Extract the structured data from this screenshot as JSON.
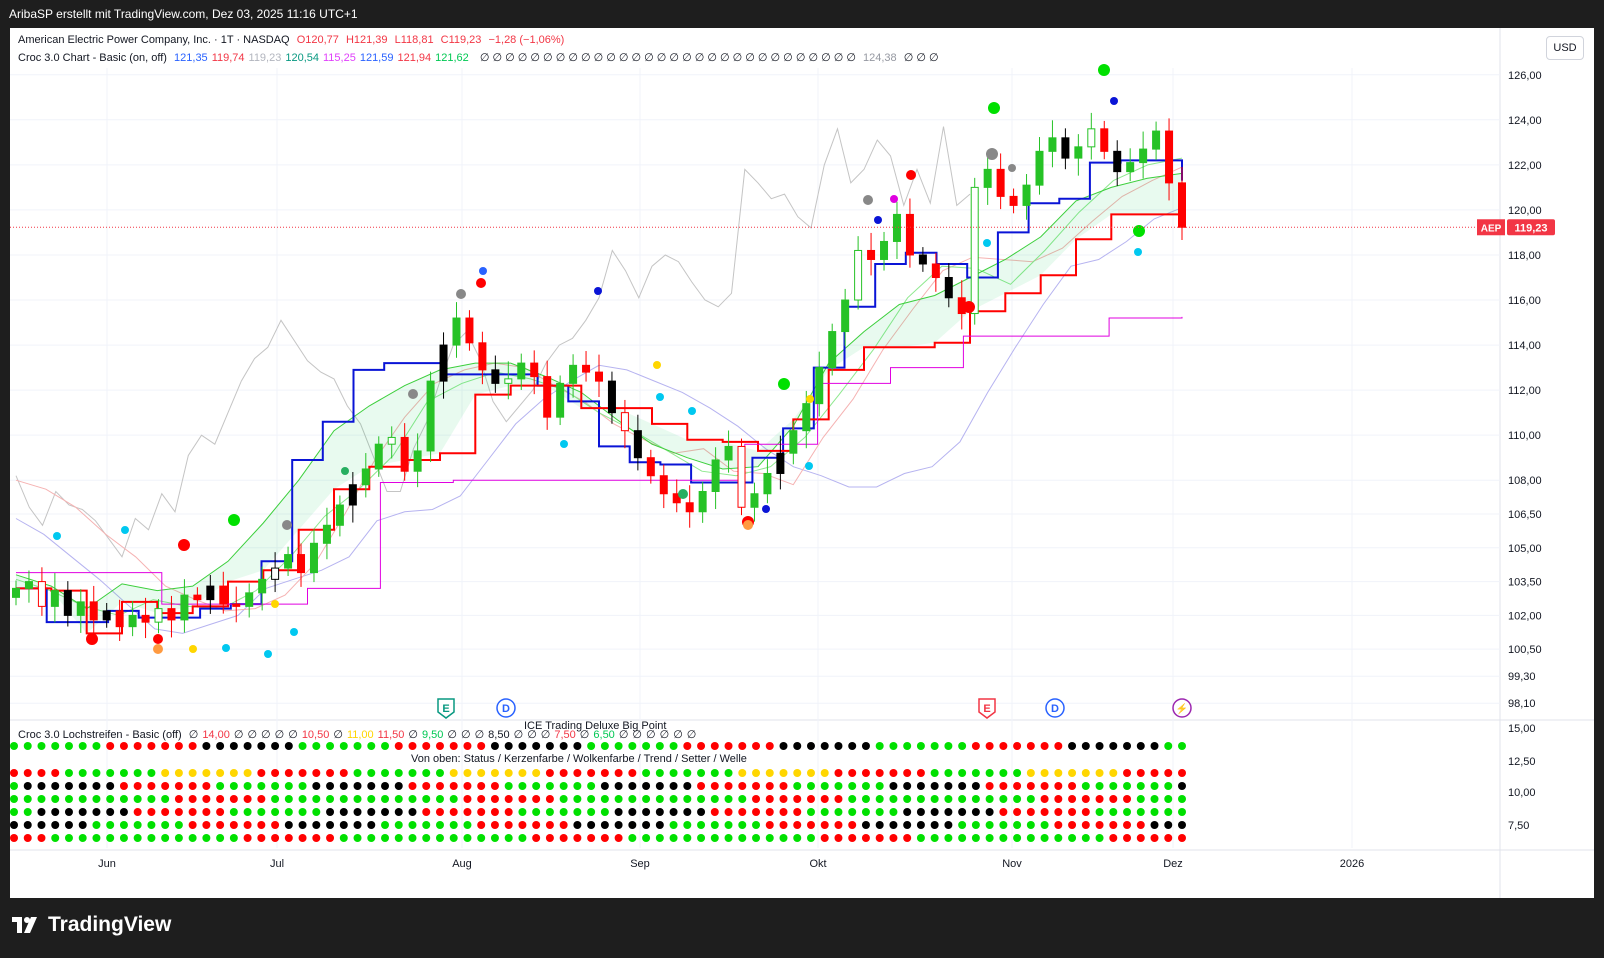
{
  "header": {
    "caption": "AribaSP erstellt mit TradingView.com, Dez 03, 2025 11:16 UTC+1"
  },
  "legend": {
    "symbol": "American Electric Power Company, Inc. · 1T · NASDAQ",
    "o": "O120,77",
    "h": "H121,39",
    "l": "L118,81",
    "c": "C119,23",
    "chg": "−1,28 (−1,06%)",
    "indicator": "Croc 3.0 Chart - Basic (on, off)",
    "values": [
      {
        "text": "121,35",
        "color": "#2962ff"
      },
      {
        "text": "119,74",
        "color": "#f23645"
      },
      {
        "text": "119,23",
        "color": "#b2b5be"
      },
      {
        "text": "120,54",
        "color": "#089981"
      },
      {
        "text": "115,25",
        "color": "#e040fb"
      },
      {
        "text": "121,59",
        "color": "#2962ff"
      },
      {
        "text": "121,94",
        "color": "#f23645"
      },
      {
        "text": "121,62",
        "color": "#00c853"
      }
    ],
    "zeros": "∅ ∅ ∅ ∅ ∅ ∅ ∅ ∅ ∅ ∅ ∅ ∅ ∅ ∅ ∅ ∅ ∅ ∅ ∅ ∅ ∅ ∅ ∅ ∅ ∅ ∅ ∅ ∅ ∅ ∅",
    "gray_value": "124,38",
    "tail": "∅ ∅ ∅"
  },
  "currency": "USD",
  "price_label": {
    "ticker": "AEP",
    "value": "119,23"
  },
  "sub_legend": {
    "title": "Croc 3.0 Lochstreifen - Basic (off)",
    "items": [
      "∅",
      "14,00",
      "∅",
      "∅",
      "∅",
      "∅",
      "∅",
      "10,50",
      "∅",
      "11,00",
      "11,50",
      "∅",
      "9,50",
      "∅",
      "∅",
      "∅",
      "8,50",
      "∅",
      "∅",
      "∅",
      "7,50",
      "∅",
      "6,50",
      "∅",
      "∅",
      "∅",
      "∅",
      "∅",
      "∅"
    ],
    "overlay_label": "ICE Trading Deluxe Big Point",
    "rows_label": "Von oben: Status / Kerzenfarbe / Wolkenfarbe / Trend / Setter / Welle"
  },
  "event_markers": [
    "E",
    "D",
    "E",
    "D"
  ],
  "brand": "TradingView",
  "chart_data": {
    "type": "candlestick",
    "title": "American Electric Power Company, Inc. · 1T · NASDAQ",
    "xlabel": "",
    "ylabel": "",
    "price_axis_ticks": [
      "126,00",
      "124,00",
      "122,00",
      "120,00",
      "118,00",
      "116,00",
      "114,00",
      "112,00",
      "110,00",
      "108,00",
      "106,50",
      "105,00",
      "103,50",
      "102,00",
      "100,50",
      "99,30",
      "98,10"
    ],
    "sub_axis_ticks": [
      "15,00",
      "12,50",
      "10,00",
      "7,50"
    ],
    "time_axis_ticks": [
      "Jun",
      "Jul",
      "Aug",
      "Sep",
      "Okt",
      "Nov",
      "Dez",
      "2026"
    ],
    "ylim": [
      97.5,
      126.5
    ],
    "last_price": 119.23,
    "ohlc_last": {
      "open": 120.77,
      "high": 121.39,
      "low": 118.81,
      "close": 119.23
    },
    "series": [
      {
        "kind": "close",
        "values": [
          103.2,
          103.5,
          102.4,
          103.1,
          102.0,
          102.6,
          101.8,
          102.2,
          101.5,
          102.0,
          101.7,
          102.3,
          101.8,
          102.9,
          102.7,
          103.3,
          102.5,
          102.4,
          103.0,
          103.6,
          104.1,
          104.7,
          103.9,
          105.2,
          106.0,
          106.9,
          107.8,
          108.5,
          109.6,
          109.9,
          108.4,
          109.3,
          112.4,
          114.0,
          115.2,
          114.1,
          112.9,
          112.3,
          112.5,
          113.2,
          112.6,
          110.8,
          112.3,
          113.1,
          112.8,
          112.4,
          111.0,
          110.2,
          109.0,
          108.2,
          107.4,
          107.0,
          106.6,
          107.5,
          108.9,
          109.5,
          106.8,
          107.4,
          108.3,
          109.2,
          110.2,
          111.4,
          113.0,
          114.6,
          116.0,
          118.2,
          117.8,
          118.6,
          119.8,
          118.0,
          117.6,
          117.0,
          116.1,
          115.4,
          121.0,
          121.8,
          120.6,
          120.2,
          121.1,
          122.6,
          123.2,
          122.3,
          122.8,
          123.6,
          122.6,
          121.7,
          122.1,
          122.7,
          123.5,
          121.2,
          119.23
        ]
      },
      {
        "kind": "line_blue",
        "name": "",
        "color": "#0a14d6",
        "values": [
          103.2,
          101.7,
          101.7,
          102.2,
          101.9,
          101.9,
          102.3,
          102.5,
          104.4,
          108.9,
          110.6,
          112.9,
          113.2,
          113.2,
          112.7,
          112.7,
          112.7,
          112.2,
          111.5,
          109.5,
          108.8,
          108.7,
          107.9,
          107.9,
          109.0,
          110.3,
          113.0,
          115.7,
          117.6,
          118.1,
          117.6,
          117.0,
          119.0,
          120.3,
          120.5,
          122.1,
          122.2,
          122.2,
          121.3
        ]
      },
      {
        "kind": "line_red",
        "name": "",
        "color": "#ff0000",
        "values": [
          103.2,
          103.1,
          101.2,
          102.6,
          102.1,
          102.4,
          103.5,
          104.0,
          105.8,
          107.6,
          108.6,
          108.9,
          109.2,
          111.8,
          112.2,
          112.2,
          111.2,
          111.2,
          110.5,
          109.8,
          109.7,
          109.3,
          110.7,
          112.9,
          113.9,
          113.9,
          114.1,
          115.5,
          116.3,
          117.1,
          118.7,
          119.8,
          119.8,
          119.74
        ]
      },
      {
        "kind": "line_magenta",
        "name": "",
        "color": "#e000e0",
        "values": [
          103.9,
          103.9,
          102.5,
          102.5,
          103.2,
          107.9,
          108.0,
          108.0,
          108.0,
          108.0,
          109.6,
          112.3,
          113.0,
          114.4,
          114.4,
          115.2,
          115.25
        ]
      }
    ],
    "grid": true,
    "legend_position": "top-left"
  }
}
